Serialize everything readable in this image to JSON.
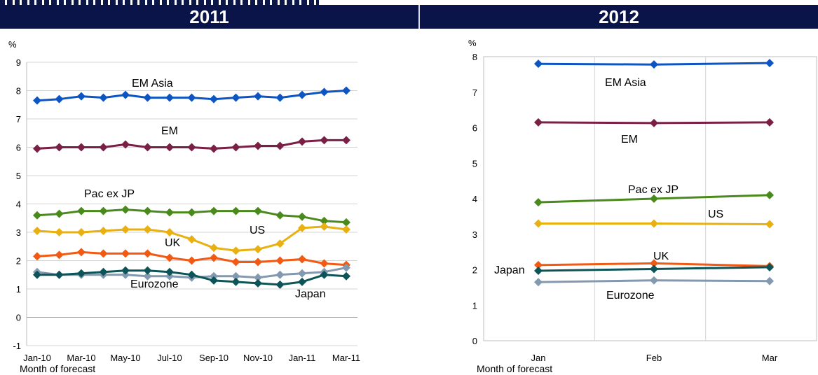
{
  "headers": {
    "left": "2011",
    "right": "2012"
  },
  "chart_data": [
    {
      "type": "line",
      "unit_label": "%",
      "xlabel": "Month of forecast",
      "ylim": [
        -1,
        9
      ],
      "yticks": [
        "-1",
        "0",
        "1",
        "2",
        "3",
        "4",
        "5",
        "6",
        "7",
        "8",
        "9"
      ],
      "categories": [
        "Jan-10",
        "Feb-10",
        "Mar-10",
        "Apr-10",
        "May-10",
        "Jun-10",
        "Jul-10",
        "Aug-10",
        "Sep-10",
        "Oct-10",
        "Nov-10",
        "Dec-10",
        "Jan-11",
        "Feb-11",
        "Mar-11"
      ],
      "tick_labels": [
        "Jan-10",
        "Mar-10",
        "May-10",
        "Jul-10",
        "Sep-10",
        "Nov-10",
        "Jan-11",
        "Mar-11"
      ],
      "grid": "horizontal",
      "series": [
        {
          "name": "EM Asia",
          "color": "#0d55c2",
          "values": [
            7.65,
            7.7,
            7.8,
            7.75,
            7.85,
            7.75,
            7.75,
            7.75,
            7.7,
            7.75,
            7.8,
            7.75,
            7.85,
            7.95,
            8.0
          ]
        },
        {
          "name": "EM",
          "color": "#7a1f45",
          "values": [
            5.95,
            6.0,
            6.0,
            6.0,
            6.1,
            6.0,
            6.0,
            6.0,
            5.95,
            6.0,
            6.05,
            6.05,
            6.2,
            6.25,
            6.25
          ]
        },
        {
          "name": "Pac ex JP",
          "color": "#4a8a1c",
          "values": [
            3.6,
            3.65,
            3.75,
            3.75,
            3.8,
            3.75,
            3.7,
            3.7,
            3.75,
            3.75,
            3.75,
            3.6,
            3.55,
            3.4,
            3.35
          ]
        },
        {
          "name": "US",
          "color": "#e8b010",
          "values": [
            3.05,
            3.0,
            3.0,
            3.05,
            3.1,
            3.1,
            3.0,
            2.75,
            2.45,
            2.35,
            2.4,
            2.6,
            3.15,
            3.2,
            3.1
          ]
        },
        {
          "name": "UK",
          "color": "#f25a14",
          "values": [
            2.15,
            2.2,
            2.3,
            2.25,
            2.25,
            2.25,
            2.1,
            2.0,
            2.1,
            1.95,
            1.95,
            2.0,
            2.05,
            1.9,
            1.85
          ]
        },
        {
          "name": "Eurozone",
          "color": "#8299b0",
          "values": [
            1.6,
            1.5,
            1.5,
            1.5,
            1.5,
            1.45,
            1.45,
            1.4,
            1.45,
            1.45,
            1.4,
            1.5,
            1.55,
            1.6,
            1.75
          ]
        },
        {
          "name": "Japan",
          "color": "#0c5457",
          "values": [
            1.5,
            1.5,
            1.55,
            1.6,
            1.65,
            1.65,
            1.6,
            1.5,
            1.3,
            1.25,
            1.2,
            1.15,
            1.25,
            1.5,
            1.45
          ]
        }
      ]
    },
    {
      "type": "line",
      "unit_label": "%",
      "xlabel": "Month of forecast",
      "ylim": [
        0,
        8
      ],
      "yticks": [
        "0",
        "1",
        "2",
        "3",
        "4",
        "5",
        "6",
        "7",
        "8"
      ],
      "categories": [
        "Jan",
        "Feb",
        "Mar"
      ],
      "tick_labels": [
        "Jan",
        "Feb",
        "Mar"
      ],
      "grid": "vertical",
      "series": [
        {
          "name": "EM Asia",
          "color": "#0d55c2",
          "values": [
            7.8,
            7.78,
            7.82
          ]
        },
        {
          "name": "EM",
          "color": "#7a1f45",
          "values": [
            6.15,
            6.13,
            6.15
          ]
        },
        {
          "name": "Pac ex JP",
          "color": "#4a8a1c",
          "values": [
            3.9,
            4.0,
            4.1
          ]
        },
        {
          "name": "US",
          "color": "#e8b010",
          "values": [
            3.3,
            3.3,
            3.28
          ]
        },
        {
          "name": "UK",
          "color": "#f25a14",
          "values": [
            2.13,
            2.18,
            2.1
          ]
        },
        {
          "name": "Japan",
          "color": "#0c5457",
          "values": [
            1.97,
            2.02,
            2.07
          ]
        },
        {
          "name": "Eurozone",
          "color": "#8299b0",
          "values": [
            1.65,
            1.7,
            1.68
          ]
        }
      ]
    }
  ]
}
